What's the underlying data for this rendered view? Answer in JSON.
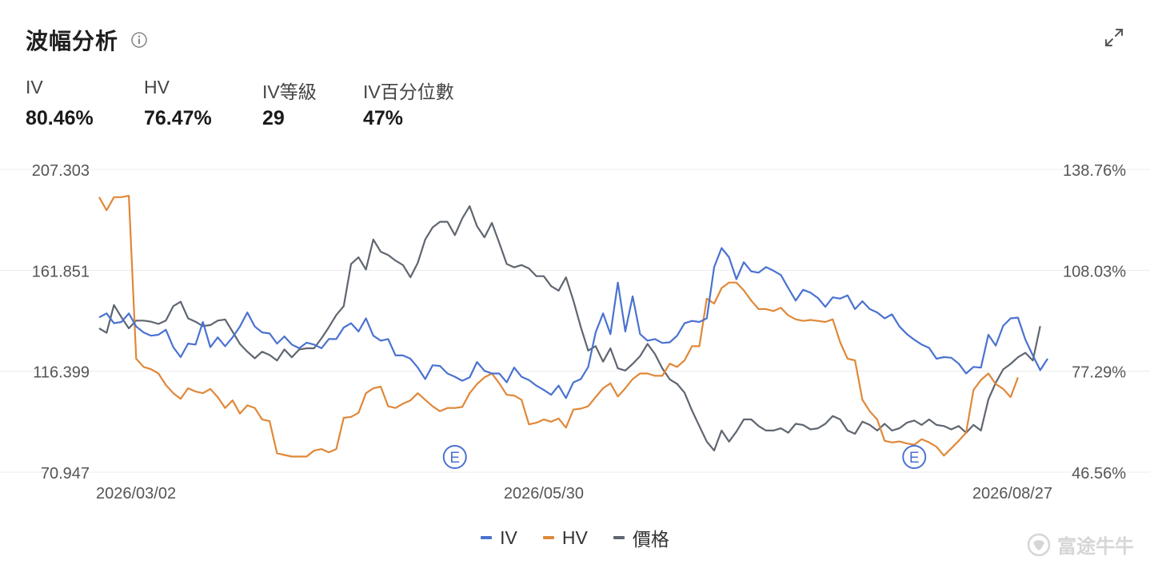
{
  "header": {
    "title": "波幅分析",
    "info_icon": "info-icon",
    "expand_icon": "expand-icon"
  },
  "stats": [
    {
      "label": "IV",
      "value": "80.46%"
    },
    {
      "label": "HV",
      "value": "76.47%"
    },
    {
      "label": "IV等級",
      "value": "29"
    },
    {
      "label": "IV百分位數",
      "value": "47%"
    }
  ],
  "watermark": {
    "text": "富途牛牛",
    "logo_icon": "futu-bull-logo-icon"
  },
  "colors": {
    "iv": "#4a72d0",
    "hv": "#e08838",
    "price": "#5f6670",
    "grid": "#ececec",
    "axis_text": "#555555",
    "marker": "#4a72d0"
  },
  "chart_data": {
    "type": "line",
    "x_tick_labels": [
      "2026/03/02",
      "2026/05/30",
      "2026/08/27"
    ],
    "x_tick_index": [
      0,
      60,
      120
    ],
    "left_axis": {
      "ticks": [
        "207.303",
        "161.851",
        "116.399",
        "70.947"
      ],
      "range": [
        70.947,
        207.303
      ]
    },
    "right_axis": {
      "ticks": [
        "138.76%",
        "108.03%",
        "77.29%",
        "46.56%"
      ],
      "range": [
        46.56,
        138.76
      ]
    },
    "event_markers": [
      {
        "label": "E",
        "x_index": 48
      },
      {
        "label": "E",
        "x_index": 110
      }
    ],
    "series": [
      {
        "name": "IV",
        "axis": "right",
        "color": "#4a72d0",
        "values": [
          93.7,
          94.9,
          91.9,
          92.3,
          94.9,
          90.9,
          89.1,
          88.1,
          88.4,
          89.9,
          84.6,
          81.6,
          85.7,
          85.4,
          92.3,
          84.6,
          87.6,
          84.9,
          87.6,
          90.9,
          95.2,
          90.9,
          89.1,
          88.8,
          85.7,
          87.9,
          85.4,
          84.3,
          86.0,
          85.4,
          84.3,
          87.1,
          87.1,
          90.6,
          91.9,
          89.4,
          93.4,
          88.1,
          86.6,
          87.1,
          82.1,
          82.1,
          81.1,
          78.4,
          74.9,
          79.1,
          78.9,
          76.6,
          75.6,
          74.4,
          75.4,
          80.1,
          77.4,
          76.6,
          76.6,
          73.9,
          78.4,
          75.6,
          74.6,
          72.9,
          71.6,
          70.1,
          72.9,
          69.1,
          73.9,
          74.9,
          78.6,
          89.1,
          94.9,
          88.6,
          104.3,
          89.4,
          100.1,
          88.6,
          86.6,
          87.1,
          85.9,
          86.1,
          88.1,
          91.9,
          92.6,
          92.3,
          93.4,
          109.0,
          114.8,
          112.0,
          105.3,
          110.5,
          107.7,
          107.3,
          109.0,
          107.9,
          106.6,
          102.6,
          98.8,
          102.1,
          101.2,
          99.6,
          96.9,
          99.8,
          99.4,
          100.4,
          96.2,
          98.6,
          96.2,
          95.2,
          93.4,
          94.6,
          90.9,
          88.6,
          86.9,
          85.4,
          84.4,
          81.1,
          81.6,
          81.4,
          79.6,
          76.6,
          78.6,
          78.4,
          88.4,
          85.1,
          91.1,
          93.4,
          93.6,
          86.9,
          82.1,
          77.6,
          81.1
        ]
      },
      {
        "name": "HV",
        "axis": "right",
        "color": "#e08838",
        "values": [
          130.3,
          126.3,
          130.3,
          130.3,
          130.7,
          81.1,
          78.6,
          77.9,
          76.6,
          73.1,
          70.6,
          68.9,
          72.1,
          71.1,
          70.6,
          71.9,
          69.4,
          66.1,
          68.4,
          64.4,
          66.9,
          66.1,
          62.6,
          62.1,
          52.3,
          51.8,
          51.3,
          51.3,
          51.3,
          53.1,
          53.6,
          52.6,
          53.6,
          63.1,
          63.4,
          64.6,
          70.6,
          72.1,
          72.6,
          66.6,
          66.1,
          67.4,
          68.4,
          70.6,
          68.6,
          66.6,
          65.1,
          66.1,
          66.1,
          66.4,
          70.6,
          73.4,
          75.4,
          76.6,
          73.6,
          70.1,
          69.9,
          68.6,
          61.1,
          61.6,
          62.6,
          61.9,
          62.9,
          60.1,
          65.6,
          65.9,
          66.6,
          69.4,
          72.1,
          73.6,
          69.6,
          72.1,
          74.9,
          76.6,
          76.6,
          75.9,
          75.9,
          79.6,
          78.6,
          80.6,
          84.9,
          84.9,
          99.4,
          97.9,
          102.6,
          104.3,
          104.3,
          101.9,
          98.8,
          96.2,
          96.2,
          95.6,
          96.6,
          94.3,
          93.1,
          92.6,
          92.9,
          92.6,
          92.3,
          93.1,
          86.1,
          81.1,
          80.6,
          68.6,
          65.1,
          62.6,
          56.1,
          55.6,
          55.9,
          55.3,
          54.9,
          56.6,
          55.6,
          54.3,
          51.6,
          53.8,
          56.1,
          58.6,
          71.6,
          74.6,
          76.6,
          73.4,
          71.9,
          69.4,
          75.4
        ]
      },
      {
        "name": "價格",
        "axis": "left",
        "color": "#5f6670",
        "values": [
          135.7,
          133.7,
          146.2,
          140.7,
          135.7,
          139.2,
          139.2,
          138.7,
          137.7,
          139.2,
          145.7,
          147.7,
          140.2,
          138.7,
          136.7,
          137.2,
          139.2,
          139.7,
          134.2,
          128.7,
          125.2,
          122.2,
          125.2,
          123.7,
          121.2,
          126.2,
          122.7,
          126.2,
          126.7,
          126.7,
          131.2,
          136.2,
          141.7,
          145.7,
          164.7,
          167.7,
          162.2,
          175.7,
          170.2,
          168.7,
          166.2,
          164.2,
          158.7,
          165.2,
          175.7,
          181.2,
          183.7,
          183.7,
          177.7,
          185.2,
          190.7,
          181.7,
          176.7,
          183.2,
          174.2,
          164.7,
          163.2,
          164.2,
          162.7,
          159.2,
          159.2,
          154.7,
          152.7,
          158.7,
          148.2,
          136.2,
          125.7,
          127.7,
          120.7,
          126.7,
          117.7,
          116.7,
          119.7,
          123.2,
          128.7,
          124.2,
          117.7,
          112.7,
          110.7,
          106.7,
          98.7,
          91.7,
          84.7,
          80.7,
          89.7,
          84.7,
          89.2,
          94.7,
          94.7,
          91.7,
          89.7,
          89.7,
          90.7,
          88.7,
          92.7,
          92.2,
          90.2,
          90.7,
          92.7,
          96.2,
          94.7,
          89.7,
          88.2,
          93.7,
          92.2,
          89.7,
          92.7,
          89.7,
          90.7,
          93.2,
          94.2,
          92.2,
          94.7,
          92.2,
          91.7,
          90.2,
          91.7,
          88.7,
          92.2,
          89.7,
          103.7,
          111.2,
          117.2,
          119.7,
          122.7,
          124.7,
          121.2,
          136.7
        ]
      }
    ]
  }
}
